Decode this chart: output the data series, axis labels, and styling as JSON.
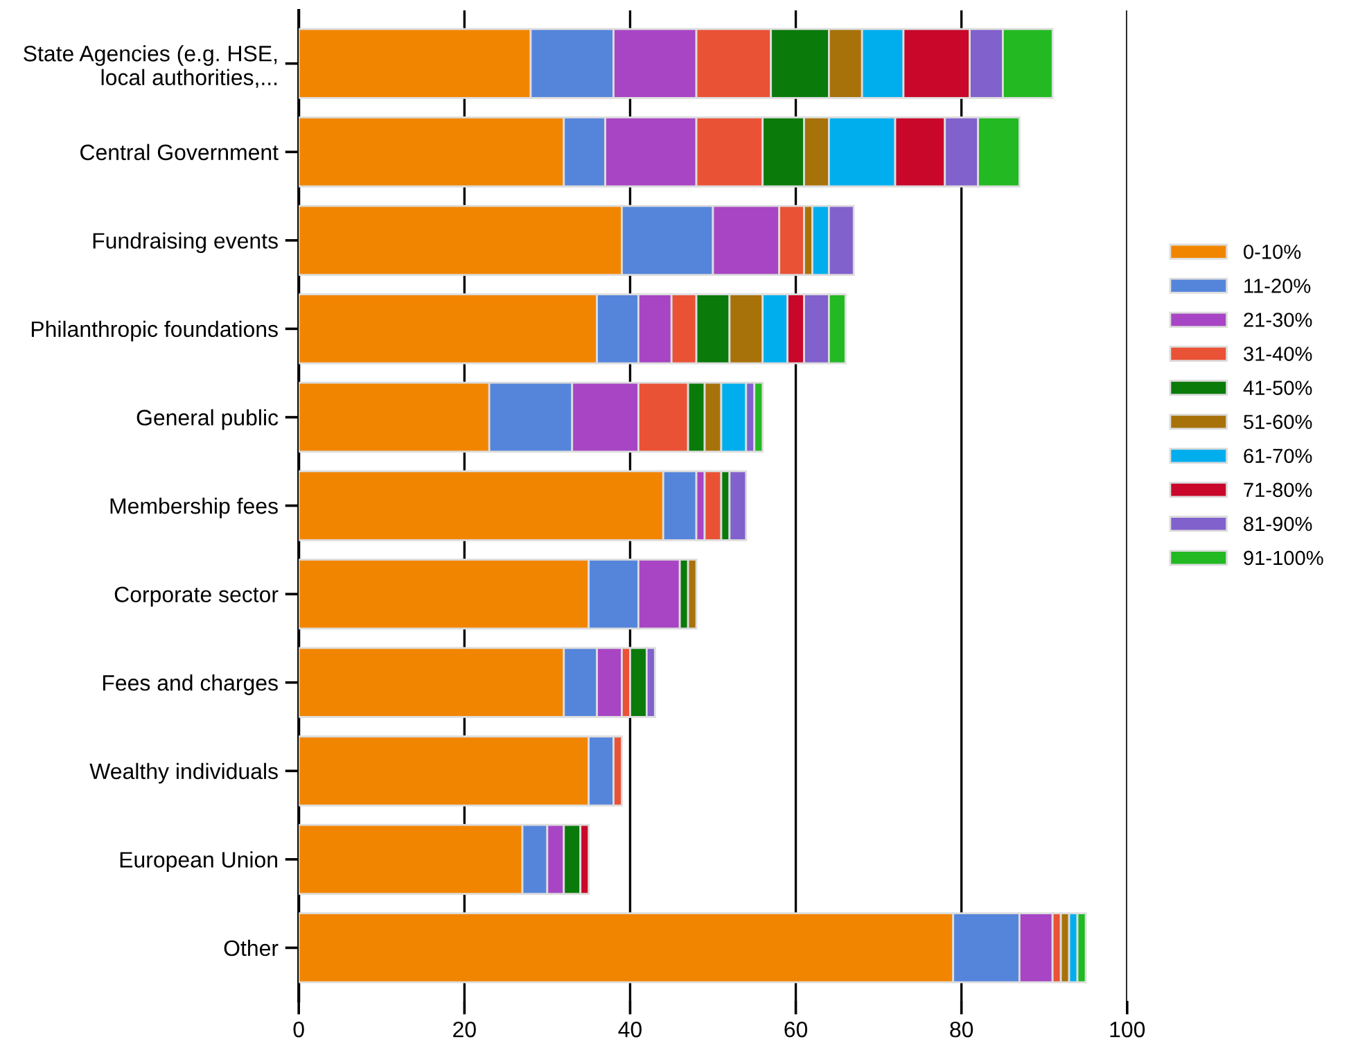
{
  "chart_data": {
    "type": "bar",
    "orientation": "horizontal",
    "stacked": true,
    "categories": [
      "State Agencies (e.g. HSE, local authorities,...",
      "Central Government",
      "Fundraising events",
      "Philanthropic foundations",
      "General public",
      "Membership fees",
      "Corporate sector",
      "Fees and charges",
      "Wealthy individuals",
      "European Union",
      "Other"
    ],
    "series": [
      {
        "name": "0-10%",
        "color": "#f28500",
        "values": [
          28,
          32,
          39,
          36,
          23,
          44,
          35,
          32,
          35,
          27,
          79
        ]
      },
      {
        "name": "11-20%",
        "color": "#5585db",
        "values": [
          10,
          5,
          11,
          5,
          10,
          4,
          6,
          4,
          3,
          3,
          8
        ]
      },
      {
        "name": "21-30%",
        "color": "#a845c4",
        "values": [
          10,
          11,
          8,
          4,
          8,
          1,
          5,
          3,
          0,
          2,
          4
        ]
      },
      {
        "name": "31-40%",
        "color": "#ea5236",
        "values": [
          9,
          8,
          3,
          3,
          6,
          2,
          0,
          1,
          1,
          0,
          1
        ]
      },
      {
        "name": "41-50%",
        "color": "#0a7a0a",
        "values": [
          7,
          5,
          0,
          4,
          2,
          1,
          1,
          2,
          0,
          2,
          0
        ]
      },
      {
        "name": "51-60%",
        "color": "#a8720a",
        "values": [
          4,
          3,
          1,
          4,
          2,
          0,
          1,
          0,
          0,
          0,
          1
        ]
      },
      {
        "name": "61-70%",
        "color": "#00aeee",
        "values": [
          5,
          8,
          2,
          3,
          3,
          0,
          0,
          0,
          0,
          0,
          1
        ]
      },
      {
        "name": "71-80%",
        "color": "#c8072a",
        "values": [
          8,
          6,
          0,
          2,
          0,
          0,
          0,
          0,
          0,
          1,
          0
        ]
      },
      {
        "name": "81-90%",
        "color": "#8161cc",
        "values": [
          4,
          4,
          3,
          3,
          1,
          2,
          0,
          1,
          0,
          0,
          0
        ]
      },
      {
        "name": "91-100%",
        "color": "#22b922",
        "values": [
          6,
          5,
          0,
          2,
          1,
          0,
          0,
          0,
          0,
          0,
          1
        ]
      }
    ],
    "xlim": [
      0,
      100
    ],
    "xticks": [
      0,
      20,
      40,
      60,
      80,
      100
    ],
    "grid": "x",
    "legend": "right"
  }
}
